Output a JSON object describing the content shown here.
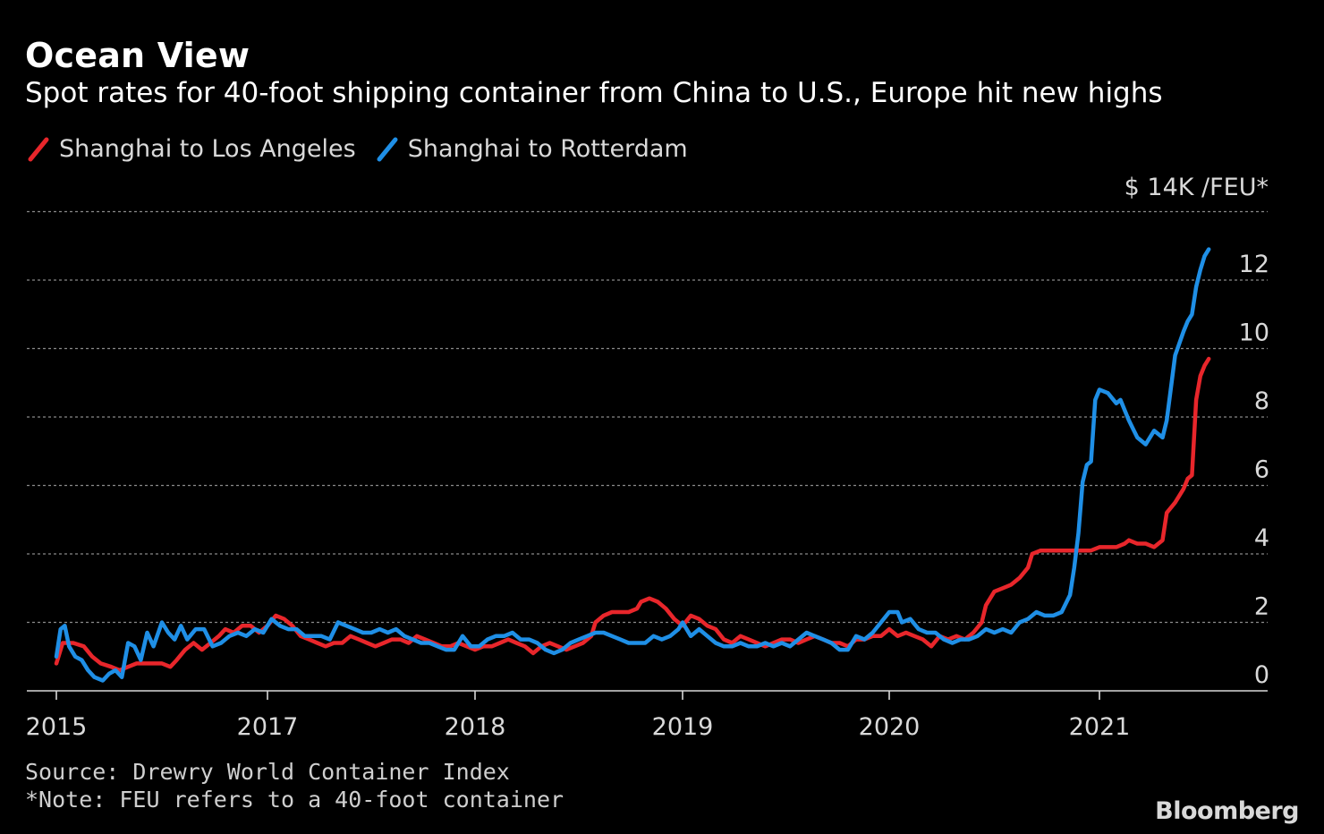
{
  "header": {
    "title": "Ocean View",
    "subtitle": "Spot rates for 40-foot shipping container from China to U.S., Europe hit new highs"
  },
  "legend": [
    {
      "label": "Shanghai to Los Angeles",
      "color": "#e8262b"
    },
    {
      "label": "Shanghai to Rotterdam",
      "color": "#1f8fe6"
    }
  ],
  "unit_label": "$ 14K /FEU*",
  "footer": {
    "source": "Source: Drewry World Container Index",
    "note": "*Note: FEU refers to a 40-foot container",
    "brand": "Bloomberg"
  },
  "chart_data": {
    "type": "line",
    "title": "Ocean View",
    "ylabel": "$ /FEU (thousands)",
    "ylim": [
      0,
      14
    ],
    "yticks": [
      0,
      2,
      4,
      6,
      8,
      10,
      12
    ],
    "grid": true,
    "legend_position": "top-left",
    "xlim": [
      0,
      5.8
    ],
    "x_ticks": [
      {
        "t": 0,
        "label": "2015"
      },
      {
        "t": 1,
        "label": "2017"
      },
      {
        "t": 2,
        "label": "2018"
      },
      {
        "t": 3,
        "label": "2019"
      },
      {
        "t": 4,
        "label": "2020"
      },
      {
        "t": 5,
        "label": "2021"
      }
    ],
    "series": [
      {
        "name": "Shanghai to Los Angeles",
        "color": "#e8262b",
        "points": [
          [
            0.0,
            0.8
          ],
          [
            0.03,
            1.4
          ],
          [
            0.08,
            1.4
          ],
          [
            0.13,
            1.3
          ],
          [
            0.17,
            1.0
          ],
          [
            0.21,
            0.8
          ],
          [
            0.26,
            0.7
          ],
          [
            0.3,
            0.6
          ],
          [
            0.34,
            0.7
          ],
          [
            0.38,
            0.8
          ],
          [
            0.42,
            0.8
          ],
          [
            0.46,
            0.8
          ],
          [
            0.5,
            0.8
          ],
          [
            0.54,
            0.7
          ],
          [
            0.57,
            0.9
          ],
          [
            0.61,
            1.2
          ],
          [
            0.65,
            1.4
          ],
          [
            0.69,
            1.2
          ],
          [
            0.73,
            1.4
          ],
          [
            0.77,
            1.6
          ],
          [
            0.8,
            1.8
          ],
          [
            0.84,
            1.7
          ],
          [
            0.88,
            1.9
          ],
          [
            0.92,
            1.9
          ],
          [
            0.96,
            1.7
          ],
          [
            1.0,
            1.9
          ],
          [
            1.04,
            2.2
          ],
          [
            1.08,
            2.1
          ],
          [
            1.12,
            1.9
          ],
          [
            1.16,
            1.6
          ],
          [
            1.2,
            1.5
          ],
          [
            1.24,
            1.4
          ],
          [
            1.28,
            1.3
          ],
          [
            1.32,
            1.4
          ],
          [
            1.36,
            1.4
          ],
          [
            1.4,
            1.6
          ],
          [
            1.44,
            1.5
          ],
          [
            1.48,
            1.4
          ],
          [
            1.52,
            1.3
          ],
          [
            1.56,
            1.4
          ],
          [
            1.6,
            1.5
          ],
          [
            1.64,
            1.5
          ],
          [
            1.68,
            1.4
          ],
          [
            1.72,
            1.6
          ],
          [
            1.76,
            1.5
          ],
          [
            1.8,
            1.4
          ],
          [
            1.84,
            1.3
          ],
          [
            1.88,
            1.3
          ],
          [
            1.92,
            1.4
          ],
          [
            1.96,
            1.3
          ],
          [
            2.0,
            1.2
          ],
          [
            2.04,
            1.3
          ],
          [
            2.08,
            1.3
          ],
          [
            2.12,
            1.4
          ],
          [
            2.16,
            1.5
          ],
          [
            2.2,
            1.4
          ],
          [
            2.24,
            1.3
          ],
          [
            2.28,
            1.1
          ],
          [
            2.32,
            1.3
          ],
          [
            2.36,
            1.4
          ],
          [
            2.4,
            1.3
          ],
          [
            2.44,
            1.2
          ],
          [
            2.48,
            1.3
          ],
          [
            2.52,
            1.4
          ],
          [
            2.56,
            1.6
          ],
          [
            2.58,
            2.0
          ],
          [
            2.62,
            2.2
          ],
          [
            2.66,
            2.3
          ],
          [
            2.7,
            2.3
          ],
          [
            2.74,
            2.3
          ],
          [
            2.78,
            2.4
          ],
          [
            2.8,
            2.6
          ],
          [
            2.84,
            2.7
          ],
          [
            2.88,
            2.6
          ],
          [
            2.92,
            2.4
          ],
          [
            2.96,
            2.1
          ],
          [
            3.0,
            1.9
          ],
          [
            3.04,
            2.2
          ],
          [
            3.08,
            2.1
          ],
          [
            3.12,
            1.9
          ],
          [
            3.16,
            1.8
          ],
          [
            3.2,
            1.5
          ],
          [
            3.24,
            1.4
          ],
          [
            3.28,
            1.6
          ],
          [
            3.32,
            1.5
          ],
          [
            3.36,
            1.4
          ],
          [
            3.4,
            1.3
          ],
          [
            3.44,
            1.4
          ],
          [
            3.48,
            1.5
          ],
          [
            3.52,
            1.5
          ],
          [
            3.56,
            1.4
          ],
          [
            3.6,
            1.5
          ],
          [
            3.64,
            1.6
          ],
          [
            3.68,
            1.5
          ],
          [
            3.72,
            1.4
          ],
          [
            3.76,
            1.4
          ],
          [
            3.8,
            1.3
          ],
          [
            3.84,
            1.5
          ],
          [
            3.88,
            1.5
          ],
          [
            3.92,
            1.6
          ],
          [
            3.96,
            1.6
          ],
          [
            4.0,
            1.8
          ],
          [
            4.04,
            1.6
          ],
          [
            4.08,
            1.7
          ],
          [
            4.12,
            1.6
          ],
          [
            4.16,
            1.5
          ],
          [
            4.2,
            1.3
          ],
          [
            4.24,
            1.6
          ],
          [
            4.28,
            1.5
          ],
          [
            4.32,
            1.6
          ],
          [
            4.36,
            1.5
          ],
          [
            4.4,
            1.7
          ],
          [
            4.44,
            2.0
          ],
          [
            4.46,
            2.5
          ],
          [
            4.5,
            2.9
          ],
          [
            4.54,
            3.0
          ],
          [
            4.58,
            3.1
          ],
          [
            4.62,
            3.3
          ],
          [
            4.66,
            3.6
          ],
          [
            4.68,
            4.0
          ],
          [
            4.72,
            4.1
          ],
          [
            4.76,
            4.1
          ],
          [
            4.8,
            4.1
          ],
          [
            4.84,
            4.1
          ],
          [
            4.88,
            4.1
          ],
          [
            4.92,
            4.1
          ],
          [
            4.96,
            4.1
          ],
          [
            5.0,
            4.2
          ],
          [
            5.04,
            4.2
          ],
          [
            5.08,
            4.2
          ],
          [
            5.12,
            4.3
          ],
          [
            5.14,
            4.4
          ],
          [
            5.18,
            4.3
          ],
          [
            5.22,
            4.3
          ],
          [
            5.26,
            4.2
          ],
          [
            5.3,
            4.4
          ],
          [
            5.32,
            5.2
          ],
          [
            5.36,
            5.5
          ],
          [
            5.4,
            5.9
          ],
          [
            5.42,
            6.2
          ],
          [
            5.44,
            6.3
          ],
          [
            5.46,
            8.5
          ],
          [
            5.48,
            9.2
          ],
          [
            5.5,
            9.5
          ],
          [
            5.52,
            9.7
          ]
        ]
      },
      {
        "name": "Shanghai to Rotterdam",
        "color": "#1f8fe6",
        "points": [
          [
            0.0,
            1.0
          ],
          [
            0.02,
            1.8
          ],
          [
            0.04,
            1.9
          ],
          [
            0.06,
            1.3
          ],
          [
            0.09,
            1.0
          ],
          [
            0.12,
            0.9
          ],
          [
            0.15,
            0.6
          ],
          [
            0.18,
            0.4
          ],
          [
            0.22,
            0.3
          ],
          [
            0.25,
            0.5
          ],
          [
            0.28,
            0.6
          ],
          [
            0.31,
            0.4
          ],
          [
            0.34,
            1.4
          ],
          [
            0.37,
            1.3
          ],
          [
            0.4,
            0.9
          ],
          [
            0.43,
            1.7
          ],
          [
            0.46,
            1.3
          ],
          [
            0.5,
            2.0
          ],
          [
            0.53,
            1.7
          ],
          [
            0.56,
            1.5
          ],
          [
            0.59,
            1.9
          ],
          [
            0.62,
            1.5
          ],
          [
            0.66,
            1.8
          ],
          [
            0.7,
            1.8
          ],
          [
            0.74,
            1.3
          ],
          [
            0.78,
            1.4
          ],
          [
            0.82,
            1.6
          ],
          [
            0.86,
            1.7
          ],
          [
            0.9,
            1.6
          ],
          [
            0.94,
            1.8
          ],
          [
            0.98,
            1.7
          ],
          [
            1.02,
            2.1
          ],
          [
            1.06,
            1.9
          ],
          [
            1.1,
            1.8
          ],
          [
            1.14,
            1.8
          ],
          [
            1.18,
            1.6
          ],
          [
            1.22,
            1.6
          ],
          [
            1.26,
            1.6
          ],
          [
            1.3,
            1.5
          ],
          [
            1.34,
            2.0
          ],
          [
            1.38,
            1.9
          ],
          [
            1.42,
            1.8
          ],
          [
            1.46,
            1.7
          ],
          [
            1.5,
            1.7
          ],
          [
            1.54,
            1.8
          ],
          [
            1.58,
            1.7
          ],
          [
            1.62,
            1.8
          ],
          [
            1.66,
            1.6
          ],
          [
            1.7,
            1.5
          ],
          [
            1.74,
            1.4
          ],
          [
            1.78,
            1.4
          ],
          [
            1.82,
            1.3
          ],
          [
            1.86,
            1.2
          ],
          [
            1.9,
            1.2
          ],
          [
            1.94,
            1.6
          ],
          [
            1.98,
            1.3
          ],
          [
            2.02,
            1.3
          ],
          [
            2.06,
            1.5
          ],
          [
            2.1,
            1.6
          ],
          [
            2.14,
            1.6
          ],
          [
            2.18,
            1.7
          ],
          [
            2.22,
            1.5
          ],
          [
            2.26,
            1.5
          ],
          [
            2.3,
            1.4
          ],
          [
            2.34,
            1.2
          ],
          [
            2.38,
            1.1
          ],
          [
            2.42,
            1.2
          ],
          [
            2.46,
            1.4
          ],
          [
            2.5,
            1.5
          ],
          [
            2.54,
            1.6
          ],
          [
            2.58,
            1.7
          ],
          [
            2.62,
            1.7
          ],
          [
            2.66,
            1.6
          ],
          [
            2.7,
            1.5
          ],
          [
            2.74,
            1.4
          ],
          [
            2.78,
            1.4
          ],
          [
            2.82,
            1.4
          ],
          [
            2.86,
            1.6
          ],
          [
            2.9,
            1.5
          ],
          [
            2.94,
            1.6
          ],
          [
            2.98,
            1.8
          ],
          [
            3.0,
            2.0
          ],
          [
            3.04,
            1.6
          ],
          [
            3.08,
            1.8
          ],
          [
            3.12,
            1.6
          ],
          [
            3.16,
            1.4
          ],
          [
            3.2,
            1.3
          ],
          [
            3.24,
            1.3
          ],
          [
            3.28,
            1.4
          ],
          [
            3.32,
            1.3
          ],
          [
            3.36,
            1.3
          ],
          [
            3.4,
            1.4
          ],
          [
            3.44,
            1.3
          ],
          [
            3.48,
            1.4
          ],
          [
            3.52,
            1.3
          ],
          [
            3.56,
            1.5
          ],
          [
            3.6,
            1.7
          ],
          [
            3.64,
            1.6
          ],
          [
            3.68,
            1.5
          ],
          [
            3.72,
            1.4
          ],
          [
            3.76,
            1.2
          ],
          [
            3.8,
            1.2
          ],
          [
            3.84,
            1.6
          ],
          [
            3.88,
            1.5
          ],
          [
            3.92,
            1.7
          ],
          [
            3.96,
            2.0
          ],
          [
            4.0,
            2.3
          ],
          [
            4.04,
            2.3
          ],
          [
            4.06,
            2.0
          ],
          [
            4.1,
            2.1
          ],
          [
            4.14,
            1.8
          ],
          [
            4.18,
            1.7
          ],
          [
            4.22,
            1.7
          ],
          [
            4.26,
            1.5
          ],
          [
            4.3,
            1.4
          ],
          [
            4.34,
            1.5
          ],
          [
            4.38,
            1.5
          ],
          [
            4.42,
            1.6
          ],
          [
            4.46,
            1.8
          ],
          [
            4.5,
            1.7
          ],
          [
            4.54,
            1.8
          ],
          [
            4.58,
            1.7
          ],
          [
            4.62,
            2.0
          ],
          [
            4.66,
            2.1
          ],
          [
            4.7,
            2.3
          ],
          [
            4.74,
            2.2
          ],
          [
            4.78,
            2.2
          ],
          [
            4.82,
            2.3
          ],
          [
            4.86,
            2.8
          ],
          [
            4.88,
            3.6
          ],
          [
            4.9,
            4.6
          ],
          [
            4.92,
            6.1
          ],
          [
            4.94,
            6.6
          ],
          [
            4.96,
            6.7
          ],
          [
            4.98,
            8.5
          ],
          [
            5.0,
            8.8
          ],
          [
            5.04,
            8.7
          ],
          [
            5.08,
            8.4
          ],
          [
            5.1,
            8.5
          ],
          [
            5.14,
            7.9
          ],
          [
            5.18,
            7.4
          ],
          [
            5.22,
            7.2
          ],
          [
            5.26,
            7.6
          ],
          [
            5.3,
            7.4
          ],
          [
            5.32,
            7.9
          ],
          [
            5.36,
            9.8
          ],
          [
            5.4,
            10.5
          ],
          [
            5.42,
            10.8
          ],
          [
            5.44,
            11.0
          ],
          [
            5.46,
            11.8
          ],
          [
            5.48,
            12.3
          ],
          [
            5.5,
            12.7
          ],
          [
            5.52,
            12.9
          ]
        ]
      }
    ]
  }
}
